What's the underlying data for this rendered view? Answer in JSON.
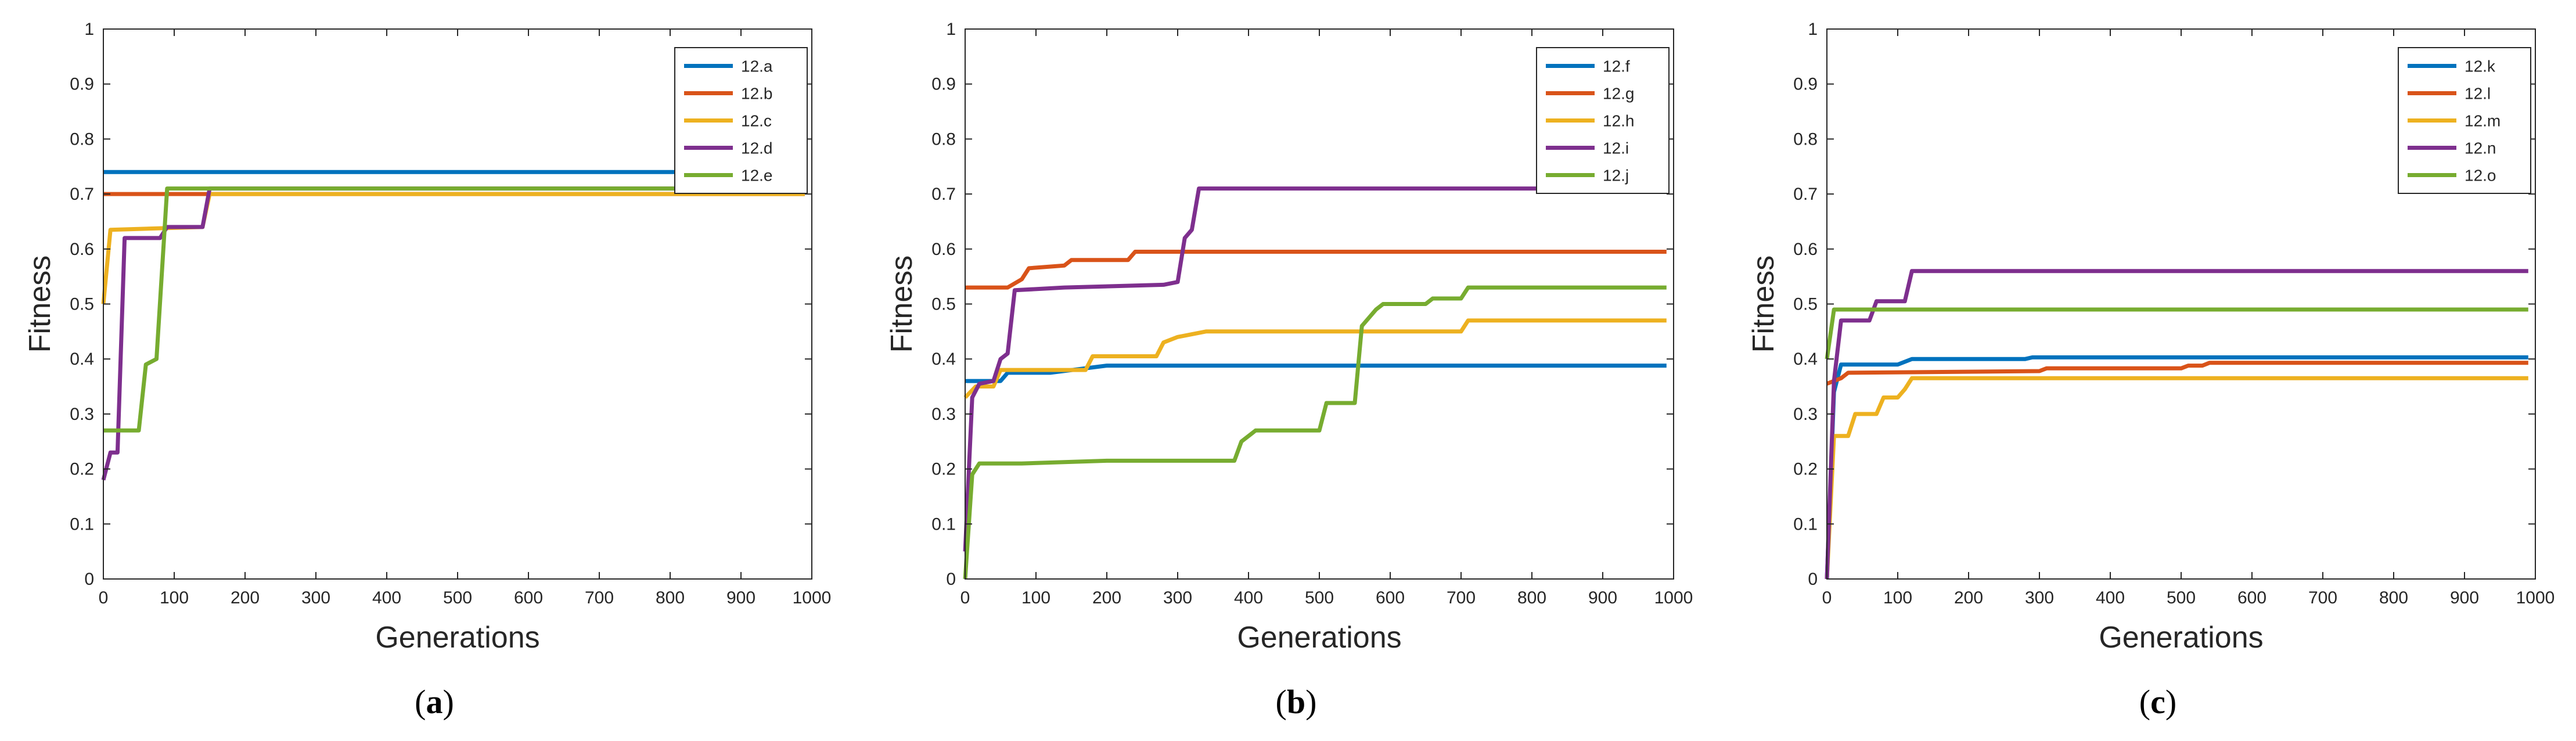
{
  "chart_data": [
    {
      "type": "line",
      "caption": "(a)",
      "caption_letter": "a",
      "xlabel": "Generations",
      "ylabel": "Fitness",
      "xlim": [
        0,
        1000
      ],
      "ylim": [
        0,
        1
      ],
      "xticks": [
        0,
        100,
        200,
        300,
        400,
        500,
        600,
        700,
        800,
        900,
        1000
      ],
      "yticks": [
        0,
        0.1,
        0.2,
        0.3,
        0.4,
        0.5,
        0.6,
        0.7,
        0.8,
        0.9,
        1
      ],
      "legend_position": "top-right",
      "series": [
        {
          "name": "12.a",
          "color": "#0072BD",
          "points": [
            [
              0,
              0.74
            ],
            [
              990,
              0.74
            ]
          ]
        },
        {
          "name": "12.b",
          "color": "#D95319",
          "points": [
            [
              0,
              0.7
            ],
            [
              990,
              0.7
            ]
          ]
        },
        {
          "name": "12.c",
          "color": "#EDB120",
          "points": [
            [
              0,
              0.5
            ],
            [
              10,
              0.635
            ],
            [
              140,
              0.64
            ],
            [
              150,
              0.7
            ],
            [
              990,
              0.7
            ]
          ]
        },
        {
          "name": "12.d",
          "color": "#7E2F8E",
          "points": [
            [
              0,
              0.18
            ],
            [
              10,
              0.23
            ],
            [
              20,
              0.23
            ],
            [
              30,
              0.62
            ],
            [
              80,
              0.62
            ],
            [
              90,
              0.64
            ],
            [
              140,
              0.64
            ],
            [
              150,
              0.71
            ],
            [
              990,
              0.71
            ]
          ]
        },
        {
          "name": "12.e",
          "color": "#77AC30",
          "points": [
            [
              0,
              0.27
            ],
            [
              50,
              0.27
            ],
            [
              60,
              0.39
            ],
            [
              75,
              0.4
            ],
            [
              90,
              0.71
            ],
            [
              990,
              0.71
            ]
          ]
        }
      ]
    },
    {
      "type": "line",
      "caption": "(b)",
      "caption_letter": "b",
      "xlabel": "Generations",
      "ylabel": "Fitness",
      "xlim": [
        0,
        1000
      ],
      "ylim": [
        0,
        1
      ],
      "xticks": [
        0,
        100,
        200,
        300,
        400,
        500,
        600,
        700,
        800,
        900,
        1000
      ],
      "yticks": [
        0,
        0.1,
        0.2,
        0.3,
        0.4,
        0.5,
        0.6,
        0.7,
        0.8,
        0.9,
        1
      ],
      "legend_position": "top-right",
      "series": [
        {
          "name": "12.f",
          "color": "#0072BD",
          "points": [
            [
              0,
              0.36
            ],
            [
              50,
              0.36
            ],
            [
              60,
              0.375
            ],
            [
              120,
              0.375
            ],
            [
              200,
              0.388
            ],
            [
              990,
              0.388
            ]
          ]
        },
        {
          "name": "12.g",
          "color": "#D95319",
          "points": [
            [
              0,
              0.53
            ],
            [
              60,
              0.53
            ],
            [
              80,
              0.545
            ],
            [
              90,
              0.565
            ],
            [
              140,
              0.57
            ],
            [
              150,
              0.58
            ],
            [
              230,
              0.58
            ],
            [
              240,
              0.595
            ],
            [
              990,
              0.595
            ]
          ]
        },
        {
          "name": "12.h",
          "color": "#EDB120",
          "points": [
            [
              0,
              0.33
            ],
            [
              15,
              0.35
            ],
            [
              40,
              0.35
            ],
            [
              50,
              0.38
            ],
            [
              170,
              0.38
            ],
            [
              180,
              0.405
            ],
            [
              270,
              0.405
            ],
            [
              280,
              0.43
            ],
            [
              300,
              0.44
            ],
            [
              340,
              0.45
            ],
            [
              700,
              0.45
            ],
            [
              710,
              0.47
            ],
            [
              990,
              0.47
            ]
          ]
        },
        {
          "name": "12.i",
          "color": "#7E2F8E",
          "points": [
            [
              0,
              0.05
            ],
            [
              10,
              0.33
            ],
            [
              20,
              0.355
            ],
            [
              40,
              0.36
            ],
            [
              50,
              0.4
            ],
            [
              60,
              0.41
            ],
            [
              70,
              0.525
            ],
            [
              140,
              0.53
            ],
            [
              280,
              0.535
            ],
            [
              300,
              0.54
            ],
            [
              310,
              0.62
            ],
            [
              320,
              0.635
            ],
            [
              330,
              0.71
            ],
            [
              990,
              0.71
            ]
          ]
        },
        {
          "name": "12.j",
          "color": "#77AC30",
          "points": [
            [
              0,
              0.0
            ],
            [
              10,
              0.19
            ],
            [
              20,
              0.21
            ],
            [
              80,
              0.21
            ],
            [
              200,
              0.215
            ],
            [
              380,
              0.215
            ],
            [
              390,
              0.25
            ],
            [
              410,
              0.27
            ],
            [
              500,
              0.27
            ],
            [
              510,
              0.32
            ],
            [
              550,
              0.32
            ],
            [
              560,
              0.46
            ],
            [
              580,
              0.49
            ],
            [
              590,
              0.5
            ],
            [
              650,
              0.5
            ],
            [
              660,
              0.51
            ],
            [
              700,
              0.51
            ],
            [
              710,
              0.53
            ],
            [
              990,
              0.53
            ]
          ]
        }
      ]
    },
    {
      "type": "line",
      "caption": "(c)",
      "caption_letter": "c",
      "xlabel": "Generations",
      "ylabel": "Fitness",
      "xlim": [
        0,
        1000
      ],
      "ylim": [
        0,
        1
      ],
      "xticks": [
        0,
        100,
        200,
        300,
        400,
        500,
        600,
        700,
        800,
        900,
        1000
      ],
      "yticks": [
        0,
        0.1,
        0.2,
        0.3,
        0.4,
        0.5,
        0.6,
        0.7,
        0.8,
        0.9,
        1
      ],
      "legend_position": "top-right",
      "series": [
        {
          "name": "12.k",
          "color": "#0072BD",
          "points": [
            [
              0,
              0.0
            ],
            [
              10,
              0.34
            ],
            [
              20,
              0.39
            ],
            [
              100,
              0.39
            ],
            [
              120,
              0.4
            ],
            [
              280,
              0.4
            ],
            [
              290,
              0.403
            ],
            [
              990,
              0.403
            ]
          ]
        },
        {
          "name": "12.l",
          "color": "#D95319",
          "points": [
            [
              0,
              0.355
            ],
            [
              20,
              0.365
            ],
            [
              30,
              0.375
            ],
            [
              300,
              0.378
            ],
            [
              310,
              0.383
            ],
            [
              500,
              0.383
            ],
            [
              510,
              0.388
            ],
            [
              530,
              0.388
            ],
            [
              540,
              0.393
            ],
            [
              990,
              0.393
            ]
          ]
        },
        {
          "name": "12.m",
          "color": "#EDB120",
          "points": [
            [
              0,
              0.0
            ],
            [
              10,
              0.26
            ],
            [
              30,
              0.26
            ],
            [
              40,
              0.3
            ],
            [
              70,
              0.3
            ],
            [
              80,
              0.33
            ],
            [
              100,
              0.33
            ],
            [
              110,
              0.345
            ],
            [
              120,
              0.365
            ],
            [
              990,
              0.365
            ]
          ]
        },
        {
          "name": "12.n",
          "color": "#7E2F8E",
          "points": [
            [
              0,
              0.0
            ],
            [
              10,
              0.36
            ],
            [
              20,
              0.47
            ],
            [
              60,
              0.47
            ],
            [
              70,
              0.505
            ],
            [
              110,
              0.505
            ],
            [
              120,
              0.56
            ],
            [
              990,
              0.56
            ]
          ]
        },
        {
          "name": "12.o",
          "color": "#77AC30",
          "points": [
            [
              0,
              0.4
            ],
            [
              10,
              0.49
            ],
            [
              990,
              0.49
            ]
          ]
        }
      ]
    }
  ]
}
